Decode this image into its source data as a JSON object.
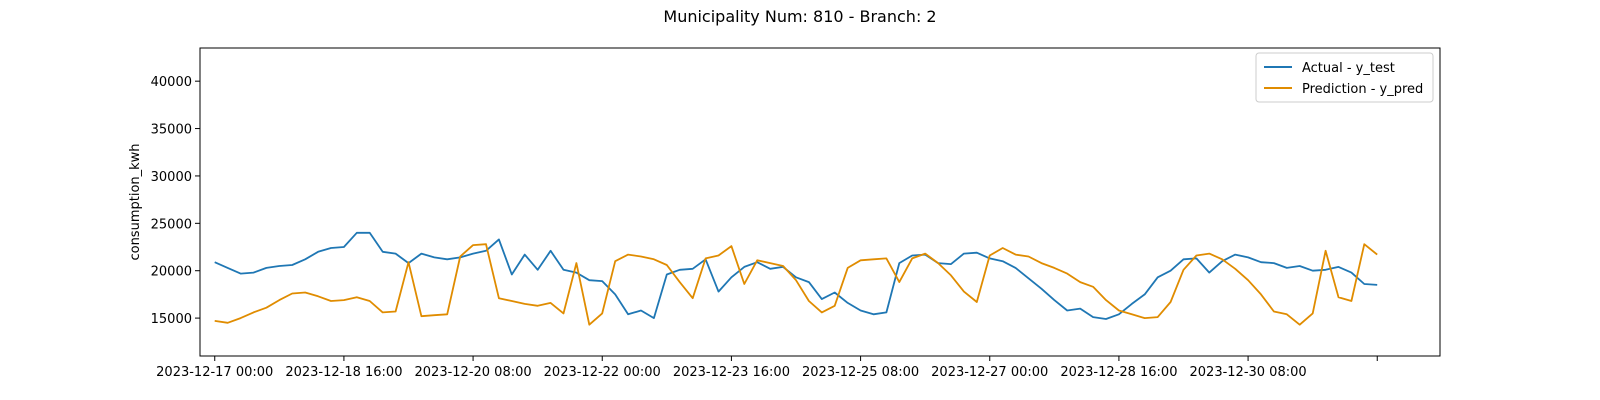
{
  "chart_data": {
    "type": "line",
    "title": "Municipality Num: 810 - Branch: 2",
    "xlabel": "",
    "ylabel": "consumption_kwh",
    "x_range": [
      "2023-12-16 19:26",
      "2024-01-01 19:26"
    ],
    "ylim": [
      11000,
      43500
    ],
    "x_ticks": [
      {
        "value": "2023-12-17 00:00",
        "label": "2023-12-17 00:00"
      },
      {
        "value": "2023-12-18 16:00",
        "label": "2023-12-18 16:00"
      },
      {
        "value": "2023-12-20 08:00",
        "label": "2023-12-20 08:00"
      },
      {
        "value": "2023-12-22 00:00",
        "label": "2023-12-22 00:00"
      },
      {
        "value": "2023-12-23 16:00",
        "label": "2023-12-23 16:00"
      },
      {
        "value": "2023-12-25 08:00",
        "label": "2023-12-25 08:00"
      },
      {
        "value": "2023-12-27 00:00",
        "label": "2023-12-27 00:00"
      },
      {
        "value": "2023-12-28 16:00",
        "label": "2023-12-28 16:00"
      },
      {
        "value": "2023-12-30 08:00",
        "label": "2023-12-30 08:00"
      },
      {
        "value": "2024-01-01 00:00",
        "label": ""
      }
    ],
    "y_ticks": [
      15000,
      20000,
      25000,
      30000,
      35000,
      40000
    ],
    "grid": false,
    "legend": "top-right",
    "series": [
      {
        "name": "Actual - y_test",
        "color": "#1f77b4",
        "points": [
          [
            "2023-12-17 00:00",
            20900
          ],
          [
            "2023-12-17 04:00",
            20300
          ],
          [
            "2023-12-17 08:00",
            19700
          ],
          [
            "2023-12-17 12:00",
            19800
          ],
          [
            "2023-12-17 16:00",
            20300
          ],
          [
            "2023-12-17 20:00",
            20500
          ],
          [
            "2023-12-18 00:00",
            20600
          ],
          [
            "2023-12-18 04:00",
            21200
          ],
          [
            "2023-12-18 08:00",
            22000
          ],
          [
            "2023-12-18 12:00",
            22400
          ],
          [
            "2023-12-18 16:00",
            22500
          ],
          [
            "2023-12-18 20:00",
            24000
          ],
          [
            "2023-12-19 00:00",
            24000
          ],
          [
            "2023-12-19 04:00",
            22000
          ],
          [
            "2023-12-19 08:00",
            21800
          ],
          [
            "2023-12-19 12:00",
            20800
          ],
          [
            "2023-12-19 16:00",
            21800
          ],
          [
            "2023-12-19 20:00",
            21400
          ],
          [
            "2023-12-20 00:00",
            21200
          ],
          [
            "2023-12-20 04:00",
            21400
          ],
          [
            "2023-12-20 08:00",
            21800
          ],
          [
            "2023-12-20 12:00",
            22100
          ],
          [
            "2023-12-20 16:00",
            23300
          ],
          [
            "2023-12-20 20:00",
            19600
          ],
          [
            "2023-12-21 00:00",
            21700
          ],
          [
            "2023-12-21 04:00",
            20100
          ],
          [
            "2023-12-21 08:00",
            22100
          ],
          [
            "2023-12-21 12:00",
            20100
          ],
          [
            "2023-12-21 16:00",
            19800
          ],
          [
            "2023-12-21 20:00",
            19000
          ],
          [
            "2023-12-22 00:00",
            18900
          ],
          [
            "2023-12-22 04:00",
            17500
          ],
          [
            "2023-12-22 08:00",
            15400
          ],
          [
            "2023-12-22 12:00",
            15800
          ],
          [
            "2023-12-22 16:00",
            15000
          ],
          [
            "2023-12-22 20:00",
            19600
          ],
          [
            "2023-12-23 00:00",
            20100
          ],
          [
            "2023-12-23 04:00",
            20200
          ],
          [
            "2023-12-23 08:00",
            21200
          ],
          [
            "2023-12-23 12:00",
            17800
          ],
          [
            "2023-12-23 16:00",
            19300
          ],
          [
            "2023-12-23 20:00",
            20400
          ],
          [
            "2023-12-24 00:00",
            20900
          ],
          [
            "2023-12-24 04:00",
            20200
          ],
          [
            "2023-12-24 08:00",
            20400
          ],
          [
            "2023-12-24 12:00",
            19300
          ],
          [
            "2023-12-24 16:00",
            18800
          ],
          [
            "2023-12-24 20:00",
            17000
          ],
          [
            "2023-12-25 00:00",
            17700
          ],
          [
            "2023-12-25 04:00",
            16600
          ],
          [
            "2023-12-25 08:00",
            15800
          ],
          [
            "2023-12-25 12:00",
            15400
          ],
          [
            "2023-12-25 16:00",
            15600
          ],
          [
            "2023-12-25 20:00",
            20800
          ],
          [
            "2023-12-26 00:00",
            21600
          ],
          [
            "2023-12-26 04:00",
            21700
          ],
          [
            "2023-12-26 08:00",
            20800
          ],
          [
            "2023-12-26 12:00",
            20700
          ],
          [
            "2023-12-26 16:00",
            21800
          ],
          [
            "2023-12-26 20:00",
            21900
          ],
          [
            "2023-12-27 00:00",
            21300
          ],
          [
            "2023-12-27 04:00",
            21000
          ],
          [
            "2023-12-27 08:00",
            20300
          ],
          [
            "2023-12-27 12:00",
            19200
          ],
          [
            "2023-12-27 16:00",
            18100
          ],
          [
            "2023-12-27 20:00",
            16900
          ],
          [
            "2023-12-28 00:00",
            15800
          ],
          [
            "2023-12-28 04:00",
            16000
          ],
          [
            "2023-12-28 08:00",
            15100
          ],
          [
            "2023-12-28 12:00",
            14900
          ],
          [
            "2023-12-28 16:00",
            15400
          ],
          [
            "2023-12-28 20:00",
            16500
          ],
          [
            "2023-12-29 00:00",
            17500
          ],
          [
            "2023-12-29 04:00",
            19300
          ],
          [
            "2023-12-29 08:00",
            20000
          ],
          [
            "2023-12-29 12:00",
            21200
          ],
          [
            "2023-12-29 16:00",
            21300
          ],
          [
            "2023-12-29 20:00",
            19800
          ],
          [
            "2023-12-30 00:00",
            21000
          ],
          [
            "2023-12-30 04:00",
            21700
          ],
          [
            "2023-12-30 08:00",
            21400
          ],
          [
            "2023-12-30 12:00",
            20900
          ],
          [
            "2023-12-30 16:00",
            20800
          ],
          [
            "2023-12-30 20:00",
            20300
          ],
          [
            "2023-12-31 00:00",
            20500
          ],
          [
            "2023-12-31 04:00",
            20000
          ],
          [
            "2023-12-31 08:00",
            20100
          ],
          [
            "2023-12-31 12:00",
            20400
          ],
          [
            "2023-12-31 16:00",
            19800
          ],
          [
            "2023-12-31 20:00",
            18600
          ],
          [
            "2024-01-01 00:00",
            18500
          ]
        ]
      },
      {
        "name": "Prediction - y_pred",
        "color": "#e08c00",
        "points": [
          [
            "2023-12-17 00:00",
            14700
          ],
          [
            "2023-12-17 04:00",
            14500
          ],
          [
            "2023-12-17 08:00",
            15000
          ],
          [
            "2023-12-17 12:00",
            15600
          ],
          [
            "2023-12-17 16:00",
            16100
          ],
          [
            "2023-12-17 20:00",
            16900
          ],
          [
            "2023-12-18 00:00",
            17600
          ],
          [
            "2023-12-18 04:00",
            17700
          ],
          [
            "2023-12-18 08:00",
            17300
          ],
          [
            "2023-12-18 12:00",
            16800
          ],
          [
            "2023-12-18 16:00",
            16900
          ],
          [
            "2023-12-18 20:00",
            17200
          ],
          [
            "2023-12-19 00:00",
            16800
          ],
          [
            "2023-12-19 04:00",
            15600
          ],
          [
            "2023-12-19 08:00",
            15700
          ],
          [
            "2023-12-19 12:00",
            20900
          ],
          [
            "2023-12-19 16:00",
            15200
          ],
          [
            "2023-12-19 20:00",
            15300
          ],
          [
            "2023-12-20 00:00",
            15400
          ],
          [
            "2023-12-20 04:00",
            21500
          ],
          [
            "2023-12-20 08:00",
            22700
          ],
          [
            "2023-12-20 12:00",
            22800
          ],
          [
            "2023-12-20 16:00",
            17100
          ],
          [
            "2023-12-20 20:00",
            16800
          ],
          [
            "2023-12-21 00:00",
            16500
          ],
          [
            "2023-12-21 04:00",
            16300
          ],
          [
            "2023-12-21 08:00",
            16600
          ],
          [
            "2023-12-21 12:00",
            15500
          ],
          [
            "2023-12-21 16:00",
            20800
          ],
          [
            "2023-12-21 20:00",
            14300
          ],
          [
            "2023-12-22 00:00",
            15500
          ],
          [
            "2023-12-22 04:00",
            21000
          ],
          [
            "2023-12-22 08:00",
            21700
          ],
          [
            "2023-12-22 12:00",
            21500
          ],
          [
            "2023-12-22 16:00",
            21200
          ],
          [
            "2023-12-22 20:00",
            20600
          ],
          [
            "2023-12-23 00:00",
            18800
          ],
          [
            "2023-12-23 04:00",
            17100
          ],
          [
            "2023-12-23 08:00",
            21300
          ],
          [
            "2023-12-23 12:00",
            21600
          ],
          [
            "2023-12-23 16:00",
            22600
          ],
          [
            "2023-12-23 20:00",
            18600
          ],
          [
            "2023-12-24 00:00",
            21100
          ],
          [
            "2023-12-24 04:00",
            20800
          ],
          [
            "2023-12-24 08:00",
            20500
          ],
          [
            "2023-12-24 12:00",
            19000
          ],
          [
            "2023-12-24 16:00",
            16800
          ],
          [
            "2023-12-24 20:00",
            15600
          ],
          [
            "2023-12-25 00:00",
            16300
          ],
          [
            "2023-12-25 04:00",
            20300
          ],
          [
            "2023-12-25 08:00",
            21100
          ],
          [
            "2023-12-25 12:00",
            21200
          ],
          [
            "2023-12-25 16:00",
            21300
          ],
          [
            "2023-12-25 20:00",
            18800
          ],
          [
            "2023-12-26 00:00",
            21300
          ],
          [
            "2023-12-26 04:00",
            21800
          ],
          [
            "2023-12-26 08:00",
            20800
          ],
          [
            "2023-12-26 12:00",
            19500
          ],
          [
            "2023-12-26 16:00",
            17800
          ],
          [
            "2023-12-26 20:00",
            16700
          ],
          [
            "2023-12-27 00:00",
            21600
          ],
          [
            "2023-12-27 04:00",
            22400
          ],
          [
            "2023-12-27 08:00",
            21700
          ],
          [
            "2023-12-27 12:00",
            21500
          ],
          [
            "2023-12-27 16:00",
            20800
          ],
          [
            "2023-12-27 20:00",
            20300
          ],
          [
            "2023-12-28 00:00",
            19700
          ],
          [
            "2023-12-28 04:00",
            18800
          ],
          [
            "2023-12-28 08:00",
            18300
          ],
          [
            "2023-12-28 12:00",
            16900
          ],
          [
            "2023-12-28 16:00",
            15800
          ],
          [
            "2023-12-28 20:00",
            15400
          ],
          [
            "2023-12-29 00:00",
            15000
          ],
          [
            "2023-12-29 04:00",
            15100
          ],
          [
            "2023-12-29 08:00",
            16700
          ],
          [
            "2023-12-29 12:00",
            20100
          ],
          [
            "2023-12-29 16:00",
            21600
          ],
          [
            "2023-12-29 20:00",
            21800
          ],
          [
            "2023-12-30 00:00",
            21200
          ],
          [
            "2023-12-30 04:00",
            20200
          ],
          [
            "2023-12-30 08:00",
            19000
          ],
          [
            "2023-12-30 12:00",
            17500
          ],
          [
            "2023-12-30 16:00",
            15700
          ],
          [
            "2023-12-30 20:00",
            15400
          ],
          [
            "2023-12-31 00:00",
            14300
          ],
          [
            "2023-12-31 04:00",
            15500
          ],
          [
            "2023-12-31 08:00",
            22100
          ],
          [
            "2023-12-31 12:00",
            17200
          ],
          [
            "2023-12-31 16:00",
            16800
          ],
          [
            "2023-12-31 20:00",
            22800
          ],
          [
            "2024-01-01 00:00",
            21700
          ]
        ]
      }
    ]
  }
}
